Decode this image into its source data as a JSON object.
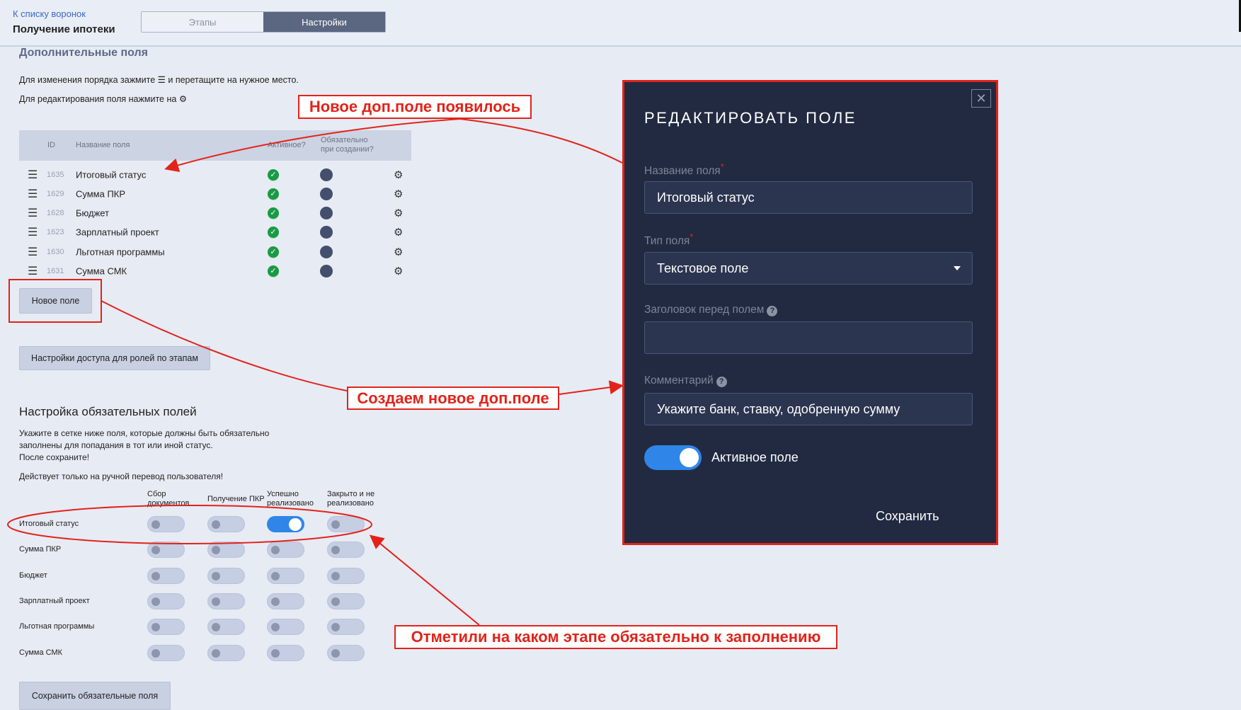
{
  "header": {
    "back_link": "К списку воронок",
    "title": "Получение ипотеки",
    "tabs": [
      {
        "label": "Этапы",
        "active": false
      },
      {
        "label": "Настройки",
        "active": true
      }
    ]
  },
  "extra_fields": {
    "title": "Дополнительные поля",
    "hint_reorder_before": "Для изменения порядка зажмите",
    "hint_reorder_after": "и перетащите на нужное место.",
    "hint_edit": "Для редактирования поля нажмите на",
    "columns": {
      "id": "ID",
      "name": "Название поля",
      "active": "Активное?",
      "required_line1": "Обязательно",
      "required_line2": "при создании?"
    },
    "rows": [
      {
        "id": "1635",
        "name": "Итоговый статус",
        "active": true,
        "required": true
      },
      {
        "id": "1629",
        "name": "Сумма ПКР",
        "active": true,
        "required": true
      },
      {
        "id": "1628",
        "name": "Бюджет",
        "active": true,
        "required": true
      },
      {
        "id": "1623",
        "name": "Зарплатный проект",
        "active": true,
        "required": true
      },
      {
        "id": "1630",
        "name": "Льготная программы",
        "active": true,
        "required": true
      },
      {
        "id": "1631",
        "name": "Сумма СМК",
        "active": true,
        "required": true
      }
    ],
    "new_field_button": "Новое поле",
    "access_button": "Настройки доступа для ролей по этапам"
  },
  "required_fields": {
    "title": "Настройка обязательных полей",
    "desc_line1": "Укажите в сетке ниже поля, которые должны быть обязательно",
    "desc_line2": "заполнены для попадания в тот или иной статус.",
    "desc_line3": "После сохраните!",
    "note": "Действует только на ручной перевод пользователя!",
    "stages": [
      [
        "Сбор",
        "документов"
      ],
      [
        "Получение ПКР",
        ""
      ],
      [
        "Успешно",
        "реализовано"
      ],
      [
        "Закрыто и не",
        "реализовано"
      ]
    ],
    "rows": [
      {
        "name": "Итоговый статус",
        "values": [
          false,
          false,
          true,
          false
        ]
      },
      {
        "name": "Сумма ПКР",
        "values": [
          false,
          false,
          false,
          false
        ]
      },
      {
        "name": "Бюджет",
        "values": [
          false,
          false,
          false,
          false
        ]
      },
      {
        "name": "Зарплатный проект",
        "values": [
          false,
          false,
          false,
          false
        ]
      },
      {
        "name": "Льготная программы",
        "values": [
          false,
          false,
          false,
          false
        ]
      },
      {
        "name": "Сумма СМК",
        "values": [
          false,
          false,
          false,
          false
        ]
      }
    ],
    "save_button": "Сохранить обязательные поля"
  },
  "modal": {
    "title": "РЕДАКТИРОВАТЬ ПОЛЕ",
    "close": "✕",
    "name_label": "Название поля",
    "name_value": "Итоговый статус",
    "type_label": "Тип поля",
    "type_value": "Текстовое поле",
    "heading_label": "Заголовок перед полем",
    "heading_value": "",
    "comment_label": "Комментарий",
    "comment_value": "Укажите банк, ставку, одобренную сумму",
    "active_label": "Активное поле",
    "active": true,
    "save": "Сохранить",
    "required_mark": "*",
    "help_mark": "?"
  },
  "annotations": {
    "new_field_appeared": "Новое доп.поле появилось",
    "create_new_field": "Создаем новое доп.поле",
    "marked_stage": "Отметили на каком этапе обязательно к заполнению"
  },
  "colors": {
    "accent": "#2f86e8",
    "annotation": "#e2231a",
    "modal_bg": "#212a41",
    "active_tab": "#5b6781",
    "check": "#1a9a45"
  }
}
